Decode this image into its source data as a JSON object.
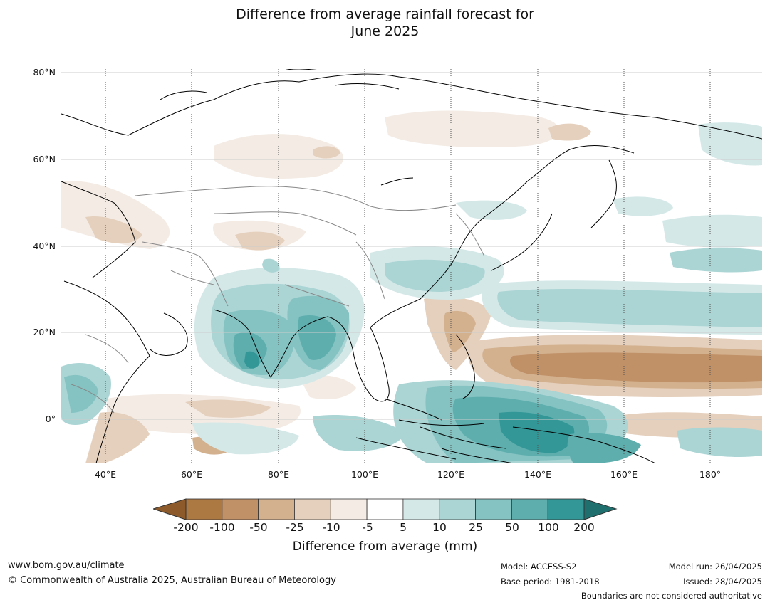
{
  "title": {
    "line1": "Difference from average rainfall forecast for",
    "line2": "June 2025"
  },
  "map": {
    "lat_labels": [
      "80°N",
      "60°N",
      "40°N",
      "20°N",
      "0°"
    ],
    "lon_labels": [
      "40°E",
      "60°E",
      "80°E",
      "100°E",
      "120°E",
      "140°E",
      "160°E",
      "180°"
    ]
  },
  "colorbar": {
    "label": "Difference from average (mm)",
    "ticks": [
      "-200",
      "-100",
      "-50",
      "-25",
      "-10",
      "-5",
      "5",
      "10",
      "25",
      "50",
      "100",
      "200"
    ],
    "colors": {
      "below_min": "#8c5a2b",
      "bins": [
        "#ad7942",
        "#c09067",
        "#d3b18f",
        "#e5d0bd",
        "#f3ebe4",
        "#ffffff",
        "#d4e8e8",
        "#abd4d4",
        "#85c3c3",
        "#5faeae",
        "#339797"
      ],
      "above_max": "#1f6f6f"
    }
  },
  "footer": {
    "url": "www.bom.gov.au/climate",
    "copyright": "© Commonwealth of Australia 2025, Australian Bureau of Meteorology",
    "model": "Model: ACCESS-S2",
    "base_period": "Base period: 1981-2018",
    "model_run": "Model run: 26/04/2025",
    "issued": "Issued: 28/04/2025",
    "disclaimer": "Boundaries are not considered authoritative"
  }
}
